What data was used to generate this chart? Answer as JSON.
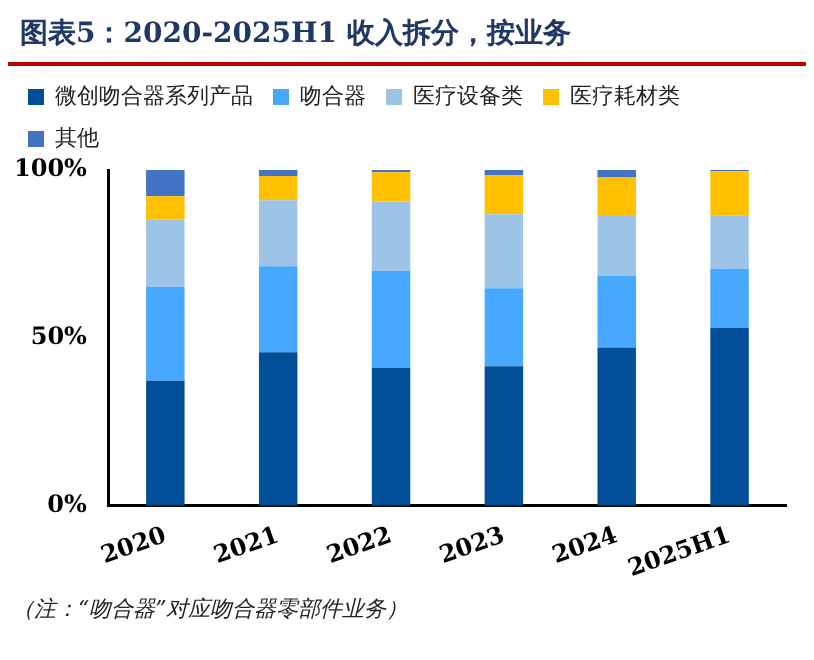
{
  "chart_data": {
    "type": "bar",
    "title": "图表5：2020-2025H1 收入拆分，按业务",
    "stacked": true,
    "categories": [
      "2020",
      "2021",
      "2022",
      "2023",
      "2024",
      "2025H1"
    ],
    "series": [
      {
        "name": "微创吻合器系列产品",
        "color": "#004f98",
        "values": [
          37.2,
          45.7,
          41.0,
          41.5,
          47.1,
          52.9
        ]
      },
      {
        "name": "吻合器",
        "color": "#47a8ff",
        "values": [
          28.0,
          25.6,
          29.0,
          23.3,
          21.5,
          17.7
        ]
      },
      {
        "name": "医疗设备类",
        "color": "#9dc3e6",
        "values": [
          20.0,
          19.7,
          20.6,
          22.0,
          17.7,
          15.9
        ]
      },
      {
        "name": "医疗耗材类",
        "color": "#ffc000",
        "values": [
          7.0,
          7.2,
          8.7,
          11.6,
          11.5,
          13.1
        ]
      },
      {
        "name": "其他",
        "color": "#4472c4",
        "values": [
          7.8,
          1.8,
          0.7,
          1.6,
          2.2,
          0.4
        ]
      }
    ],
    "ylim": [
      0,
      100
    ],
    "yticks": [
      {
        "value": 0,
        "label": "0%"
      },
      {
        "value": 50,
        "label": "50%"
      },
      {
        "value": 100,
        "label": "100%"
      }
    ],
    "grid": false,
    "legend": "top",
    "annotations": [
      "（注：“吻合器”对应吻合器零部件业务）"
    ]
  }
}
